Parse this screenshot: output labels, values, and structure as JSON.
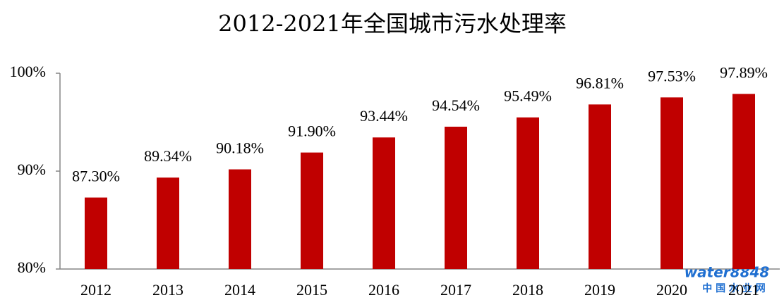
{
  "chart_data": {
    "type": "bar",
    "title": "2012-2021年全国城市污水处理率",
    "categories": [
      "2012",
      "2013",
      "2014",
      "2015",
      "2016",
      "2017",
      "2018",
      "2019",
      "2020",
      "2021"
    ],
    "values": [
      87.3,
      89.34,
      90.18,
      91.9,
      93.44,
      94.54,
      95.49,
      96.81,
      97.53,
      97.89
    ],
    "value_labels": [
      "87.30%",
      "89.34%",
      "90.18%",
      "91.90%",
      "93.44%",
      "94.54%",
      "95.49%",
      "96.81%",
      "97.53%",
      "97.89%"
    ],
    "color": "#c00000",
    "ylim": [
      80,
      100
    ],
    "yticks": [
      {
        "value": 80,
        "label": "80%"
      },
      {
        "value": 90,
        "label": "90%"
      },
      {
        "value": 100,
        "label": "100%"
      }
    ],
    "grid": false,
    "watermark": "water8848",
    "watermark_subtitle": "中 国 水 业 网"
  }
}
